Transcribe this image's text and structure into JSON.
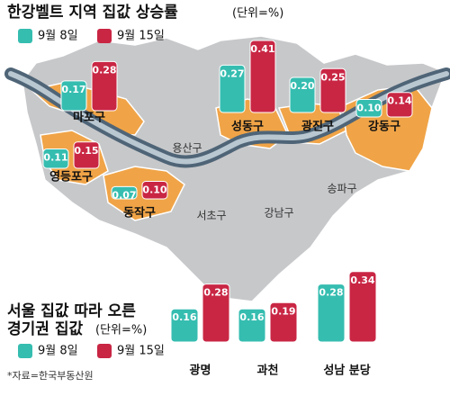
{
  "chart_data": [
    {
      "type": "bar",
      "title": "한강벨트 지역 집값 상승률",
      "subtitle": "(단위=%)",
      "categories": [
        "마포구",
        "성동구",
        "광진구",
        "강동구",
        "영등포구",
        "동작구"
      ],
      "series": [
        {
          "name": "9월 8일",
          "color": "#35bdb0",
          "values": [
            0.17,
            0.27,
            0.2,
            0.1,
            0.11,
            0.07
          ],
          "value_labels": [
            "0.17",
            "0.27",
            "0.20",
            "0.10",
            "0.11",
            "0.07"
          ]
        },
        {
          "name": "9월 15일",
          "color": "#c92644",
          "values": [
            0.28,
            0.41,
            0.25,
            0.14,
            0.15,
            0.1
          ],
          "value_labels": [
            "0.28",
            "0.41",
            "0.25",
            "0.14",
            "0.15",
            "0.10"
          ]
        }
      ],
      "map_labels": [
        "용산구",
        "서초구",
        "강남구",
        "송파구"
      ]
    },
    {
      "type": "bar",
      "title": [
        "서울 집값 따라 오른",
        "경기권 집값"
      ],
      "subtitle": "(단위=%)",
      "categories": [
        "광명",
        "과천",
        "성남 분당"
      ],
      "series": [
        {
          "name": "9월 8일",
          "color": "#35bdb0",
          "values": [
            0.16,
            0.16,
            0.28
          ],
          "value_labels": [
            "0.16",
            "0.16",
            "0.28"
          ]
        },
        {
          "name": "9월 15일",
          "color": "#c92644",
          "values": [
            0.28,
            0.19,
            0.34
          ],
          "value_labels": [
            "0.28",
            "0.19",
            "0.34"
          ]
        }
      ]
    }
  ],
  "source": "*자료=한국부동산원"
}
